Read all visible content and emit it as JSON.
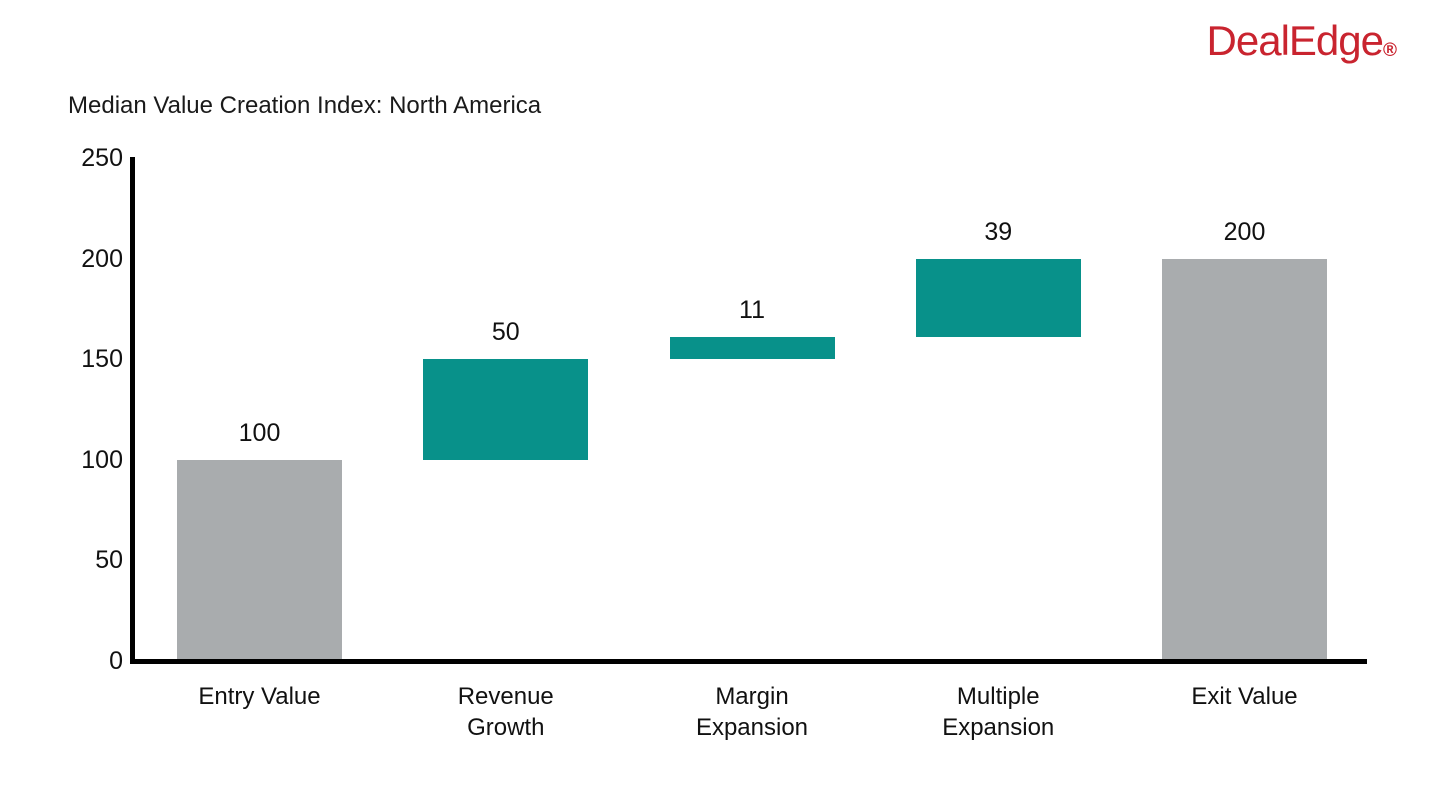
{
  "logo": {
    "text": "DealEdge",
    "registered_mark": "®",
    "color": "#C9242F"
  },
  "chart_data": {
    "type": "bar",
    "subtype": "waterfall",
    "title": "Median Value Creation Index: North America",
    "categories": [
      "Entry Value",
      "Revenue\nGrowth",
      "Margin\nExpansion",
      "Multiple\nExpansion",
      "Exit Value"
    ],
    "bars": [
      {
        "label": "Entry Value",
        "value": 100,
        "start": 0,
        "end": 100,
        "role": "total"
      },
      {
        "label": "Revenue Growth",
        "value": 50,
        "start": 100,
        "end": 150,
        "role": "increment"
      },
      {
        "label": "Margin Expansion",
        "value": 11,
        "start": 150,
        "end": 161,
        "role": "increment"
      },
      {
        "label": "Multiple Expansion",
        "value": 39,
        "start": 161,
        "end": 200,
        "role": "increment"
      },
      {
        "label": "Exit Value",
        "value": 200,
        "start": 0,
        "end": 200,
        "role": "total"
      }
    ],
    "y_ticks": [
      0,
      50,
      100,
      150,
      200,
      250
    ],
    "ylim": [
      0,
      250
    ],
    "xlabel": "",
    "ylabel": "",
    "grid": "off",
    "legend": "none",
    "colors": {
      "total": "#A9ACAE",
      "increment": "#08918A",
      "axis": "#000000",
      "text": "#111111"
    }
  }
}
